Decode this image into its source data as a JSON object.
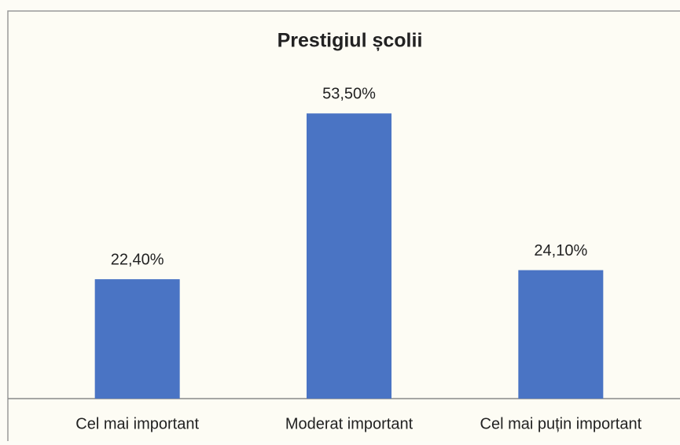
{
  "chart_data": {
    "type": "bar",
    "title": "Prestigiul școlii",
    "categories": [
      "Cel mai important",
      "Moderat important",
      "Cel mai puțin important"
    ],
    "values": [
      22.4,
      53.5,
      24.1
    ],
    "value_labels": [
      "22,40%",
      "53,50%",
      "24,10%"
    ],
    "color": "#4a74c4"
  }
}
